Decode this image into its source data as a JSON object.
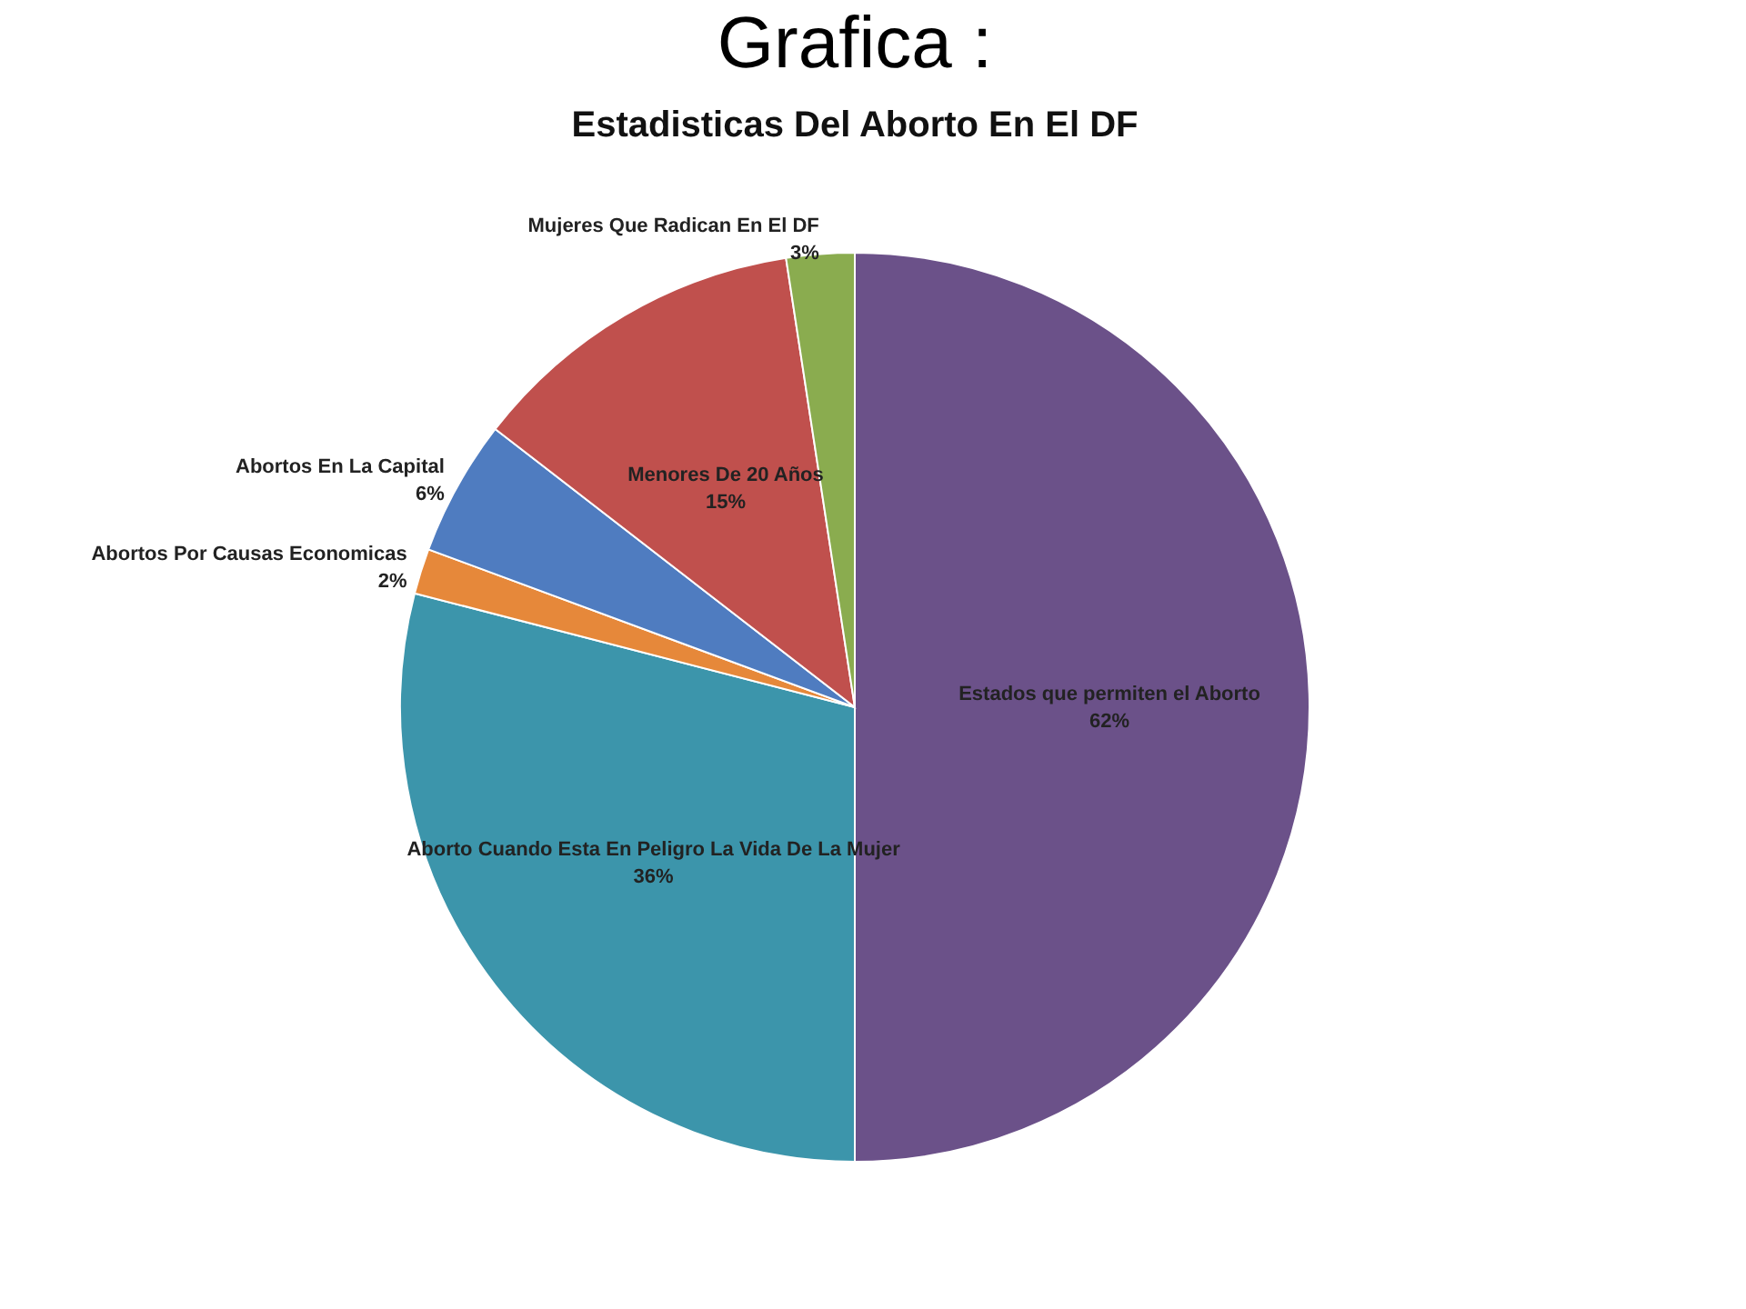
{
  "chart_data": {
    "type": "pie",
    "title": "Grafica :",
    "subtitle": "Estadisticas Del Aborto En El DF",
    "categories": [
      "Estados que permiten el Aborto",
      "Aborto  Cuando  Esta En Peligro La Vida De La Mujer",
      "Abortos Por Causas Economicas",
      "Abortos En La Capital",
      "Menores De  20 Años",
      "Mujeres Que Radican  En El DF"
    ],
    "values": [
      62,
      36,
      2,
      6,
      15,
      3
    ],
    "value_labels": [
      "62%",
      "36%",
      "2%",
      "6%",
      "15%",
      "3%"
    ],
    "colors": [
      "#6b5189",
      "#3c95ab",
      "#e6883a",
      "#4f7cc0",
      "#c0504d",
      "#8aac4f"
    ]
  }
}
